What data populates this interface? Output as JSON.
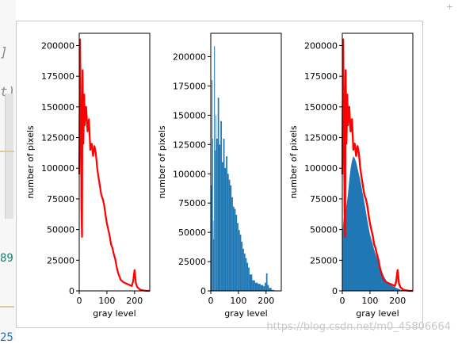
{
  "gutter": {
    "bracket_text": "]",
    "paren_text": "t)",
    "number_text": "89",
    "bottom_text": "25"
  },
  "corner_glyph": "+",
  "watermark": "https://blog.csdn.net/m0_45806664",
  "colors": {
    "red": "#ff0000",
    "blue": "#1f77b4",
    "axis": "#000000",
    "frame": "#c8c8c8"
  },
  "chart_data": [
    {
      "type": "line",
      "xlabel": "gray level",
      "ylabel": "number of pixels",
      "xlim": [
        0,
        255
      ],
      "ylim": [
        0,
        210000
      ],
      "xticks": [
        "0",
        "100",
        "200"
      ],
      "yticks": [
        "0",
        "25000",
        "50000",
        "75000",
        "100000",
        "125000",
        "150000",
        "175000",
        "200000"
      ],
      "series": [
        {
          "color": "#ff0000",
          "x": [
            0,
            3,
            6,
            8,
            10,
            12,
            15,
            18,
            20,
            25,
            30,
            35,
            40,
            45,
            50,
            55,
            60,
            65,
            70,
            75,
            80,
            85,
            90,
            95,
            100,
            105,
            110,
            115,
            120,
            125,
            130,
            135,
            140,
            150,
            160,
            170,
            180,
            190,
            195,
            200,
            205,
            210,
            220,
            230,
            240,
            255
          ],
          "y": [
            95000,
            205000,
            140000,
            65000,
            44000,
            180000,
            120000,
            160000,
            135000,
            150000,
            130000,
            140000,
            115000,
            120000,
            110000,
            118000,
            112000,
            100000,
            92000,
            85000,
            78000,
            75000,
            70000,
            62000,
            55000,
            50000,
            45000,
            38000,
            35000,
            30000,
            26000,
            20000,
            15000,
            9000,
            7000,
            6000,
            5000,
            4000,
            8000,
            17000,
            6000,
            3000,
            1000,
            400,
            100,
            0
          ]
        }
      ]
    },
    {
      "type": "bar",
      "xlabel": "gray level",
      "ylabel": "number of pixels",
      "xlim": [
        0,
        255
      ],
      "ylim": [
        0,
        220000
      ],
      "xticks": [
        "0",
        "100",
        "200"
      ],
      "yticks": [
        "0",
        "25000",
        "50000",
        "75000",
        "100000",
        "125000",
        "150000",
        "175000",
        "200000"
      ],
      "series": [
        {
          "color": "#1f77b4",
          "x": [
            0,
            3,
            6,
            8,
            10,
            12,
            15,
            18,
            20,
            25,
            30,
            35,
            40,
            45,
            50,
            55,
            60,
            65,
            70,
            75,
            80,
            85,
            90,
            95,
            100,
            105,
            110,
            115,
            120,
            125,
            130,
            135,
            140,
            150,
            160,
            170,
            180,
            190,
            195,
            200,
            205,
            210,
            220,
            230,
            240,
            255
          ],
          "y": [
            90000,
            180000,
            130000,
            60000,
            44000,
            209000,
            120000,
            150000,
            130000,
            165000,
            125000,
            145000,
            110000,
            130000,
            105000,
            115000,
            100000,
            95000,
            90000,
            80000,
            72000,
            70000,
            65000,
            58000,
            52000,
            48000,
            42000,
            36000,
            32000,
            28000,
            24000,
            20000,
            14000,
            9000,
            7000,
            6000,
            5000,
            4000,
            7000,
            15000,
            5000,
            2500,
            800,
            300,
            100,
            0
          ]
        }
      ]
    },
    {
      "type": "line",
      "xlabel": "gray level",
      "ylabel": "number of pixels",
      "xlim": [
        0,
        255
      ],
      "ylim": [
        0,
        210000
      ],
      "xticks": [
        "0",
        "100",
        "200"
      ],
      "yticks": [
        "0",
        "25000",
        "50000",
        "75000",
        "100000",
        "125000",
        "150000",
        "175000",
        "200000"
      ],
      "series": [
        {
          "color": "#ff0000",
          "x": [
            0,
            3,
            6,
            8,
            10,
            12,
            15,
            18,
            20,
            25,
            30,
            35,
            40,
            45,
            50,
            55,
            60,
            65,
            70,
            75,
            80,
            85,
            90,
            95,
            100,
            105,
            110,
            115,
            120,
            125,
            130,
            135,
            140,
            150,
            160,
            170,
            180,
            190,
            195,
            200,
            205,
            210,
            220,
            230,
            240,
            255
          ],
          "y": [
            95000,
            205000,
            140000,
            65000,
            44000,
            180000,
            120000,
            160000,
            135000,
            150000,
            130000,
            140000,
            115000,
            120000,
            110000,
            118000,
            112000,
            100000,
            92000,
            85000,
            78000,
            75000,
            70000,
            62000,
            55000,
            50000,
            45000,
            38000,
            35000,
            30000,
            26000,
            20000,
            15000,
            9000,
            7000,
            6000,
            5000,
            4000,
            8000,
            17000,
            6000,
            3000,
            1000,
            400,
            100,
            0
          ]
        },
        {
          "color": "#1f77b4",
          "x": [
            0,
            5,
            10,
            15,
            20,
            25,
            30,
            35,
            40,
            45,
            50,
            55,
            60,
            65,
            70,
            75,
            80,
            85,
            90,
            95,
            100,
            110,
            120,
            130,
            140,
            150,
            160,
            170,
            180,
            190,
            200,
            210,
            220,
            255
          ],
          "y": [
            45000,
            60000,
            62000,
            70000,
            78000,
            90000,
            100000,
            106000,
            110000,
            108000,
            105000,
            100000,
            95000,
            90000,
            84000,
            78000,
            72000,
            65000,
            58000,
            52000,
            46000,
            38000,
            30000,
            24000,
            18000,
            12000,
            8000,
            6000,
            4000,
            3000,
            2000,
            1000,
            500,
            0
          ]
        }
      ]
    }
  ]
}
